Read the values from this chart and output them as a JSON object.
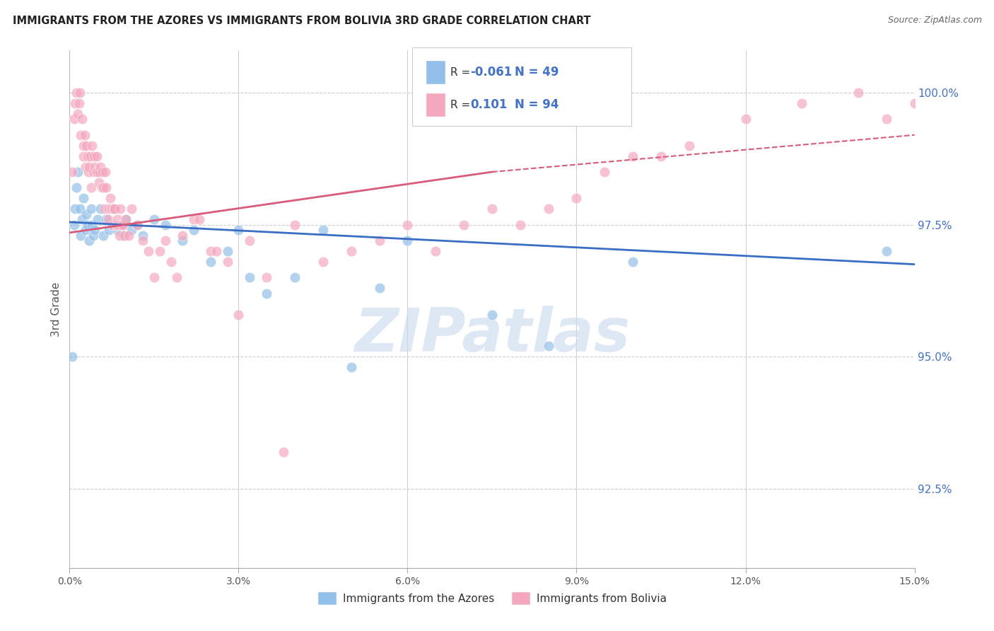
{
  "title": "IMMIGRANTS FROM THE AZORES VS IMMIGRANTS FROM BOLIVIA 3RD GRADE CORRELATION CHART",
  "source": "Source: ZipAtlas.com",
  "ylabel": "3rd Grade",
  "azores_R": -0.061,
  "azores_N": 49,
  "bolivia_R": 0.101,
  "bolivia_N": 94,
  "azores_color": "#92C0E8",
  "bolivia_color": "#F4A8BE",
  "trend_azores_color": "#3A6EC4",
  "trend_bolivia_color": "#D95B7A",
  "watermark_color": "#C8D8EE",
  "watermark": "ZIPatlas",
  "xmin": 0.0,
  "xmax": 15.0,
  "ymin": 91.0,
  "ymax": 100.8,
  "yticks": [
    100.0,
    97.5,
    95.0,
    92.5
  ],
  "xticks": [
    0.0,
    3.0,
    6.0,
    9.0,
    12.0,
    15.0
  ],
  "azores_x": [
    0.05,
    0.08,
    0.1,
    0.12,
    0.15,
    0.18,
    0.2,
    0.22,
    0.25,
    0.28,
    0.3,
    0.32,
    0.35,
    0.38,
    0.4,
    0.42,
    0.45,
    0.5,
    0.55,
    0.6,
    0.65,
    0.7,
    0.75,
    0.8,
    0.85,
    0.9,
    0.95,
    1.0,
    1.1,
    1.2,
    1.3,
    1.5,
    1.7,
    2.0,
    2.2,
    2.5,
    2.8,
    3.0,
    3.2,
    3.5,
    4.0,
    4.5,
    5.0,
    5.5,
    6.0,
    7.5,
    8.5,
    10.0,
    14.5
  ],
  "azores_y": [
    95.0,
    97.5,
    97.8,
    98.2,
    98.5,
    97.8,
    97.3,
    97.6,
    98.0,
    97.4,
    97.7,
    97.5,
    97.2,
    97.8,
    97.5,
    97.3,
    97.4,
    97.6,
    97.8,
    97.3,
    97.6,
    97.4,
    97.5,
    97.8,
    97.4,
    97.5,
    97.3,
    97.6,
    97.4,
    97.5,
    97.3,
    97.6,
    97.5,
    97.2,
    97.4,
    96.8,
    97.0,
    97.4,
    96.5,
    96.2,
    96.5,
    97.4,
    94.8,
    96.3,
    97.2,
    95.8,
    95.2,
    96.8,
    97.0
  ],
  "bolivia_x": [
    0.05,
    0.08,
    0.1,
    0.12,
    0.15,
    0.17,
    0.18,
    0.2,
    0.22,
    0.24,
    0.25,
    0.27,
    0.28,
    0.3,
    0.32,
    0.33,
    0.35,
    0.37,
    0.38,
    0.4,
    0.42,
    0.43,
    0.45,
    0.47,
    0.48,
    0.5,
    0.52,
    0.53,
    0.55,
    0.57,
    0.58,
    0.6,
    0.62,
    0.63,
    0.65,
    0.67,
    0.68,
    0.7,
    0.72,
    0.73,
    0.75,
    0.77,
    0.78,
    0.8,
    0.82,
    0.83,
    0.85,
    0.87,
    0.88,
    0.9,
    0.92,
    0.95,
    0.98,
    1.0,
    1.05,
    1.1,
    1.2,
    1.3,
    1.4,
    1.5,
    1.6,
    1.8,
    2.0,
    2.2,
    2.5,
    2.8,
    3.0,
    3.5,
    4.0,
    4.5,
    5.0,
    5.5,
    6.0,
    6.5,
    7.0,
    7.5,
    8.0,
    8.5,
    9.0,
    9.5,
    10.0,
    10.5,
    11.0,
    12.0,
    13.0,
    14.0,
    14.5,
    15.0,
    1.7,
    1.9,
    3.2,
    2.3,
    2.6,
    3.8
  ],
  "bolivia_y": [
    98.5,
    99.5,
    99.8,
    100.0,
    99.6,
    99.8,
    100.0,
    99.2,
    99.5,
    99.0,
    98.8,
    99.2,
    98.6,
    99.0,
    98.8,
    98.5,
    98.6,
    98.8,
    98.2,
    99.0,
    98.5,
    98.8,
    98.6,
    98.5,
    98.8,
    98.5,
    98.3,
    98.5,
    98.6,
    98.2,
    98.5,
    98.2,
    97.8,
    98.5,
    98.2,
    97.8,
    97.6,
    97.8,
    98.0,
    97.8,
    97.8,
    97.5,
    97.8,
    97.8,
    97.5,
    97.5,
    97.6,
    97.5,
    97.3,
    97.8,
    97.5,
    97.5,
    97.3,
    97.6,
    97.3,
    97.8,
    97.5,
    97.2,
    97.0,
    96.5,
    97.0,
    96.8,
    97.3,
    97.6,
    97.0,
    96.8,
    95.8,
    96.5,
    97.5,
    96.8,
    97.0,
    97.2,
    97.5,
    97.0,
    97.5,
    97.8,
    97.5,
    97.8,
    98.0,
    98.5,
    98.8,
    98.8,
    99.0,
    99.5,
    99.8,
    100.0,
    99.5,
    99.8,
    97.2,
    96.5,
    97.2,
    97.6,
    97.0,
    93.2
  ],
  "bolivia_trend_solid_end": 7.5,
  "az_trend_y0": 97.55,
  "az_trend_y1": 96.75,
  "bol_trend_y0": 97.35,
  "bol_trend_y1_solid": 98.5,
  "bol_trend_y1_dash": 99.2
}
